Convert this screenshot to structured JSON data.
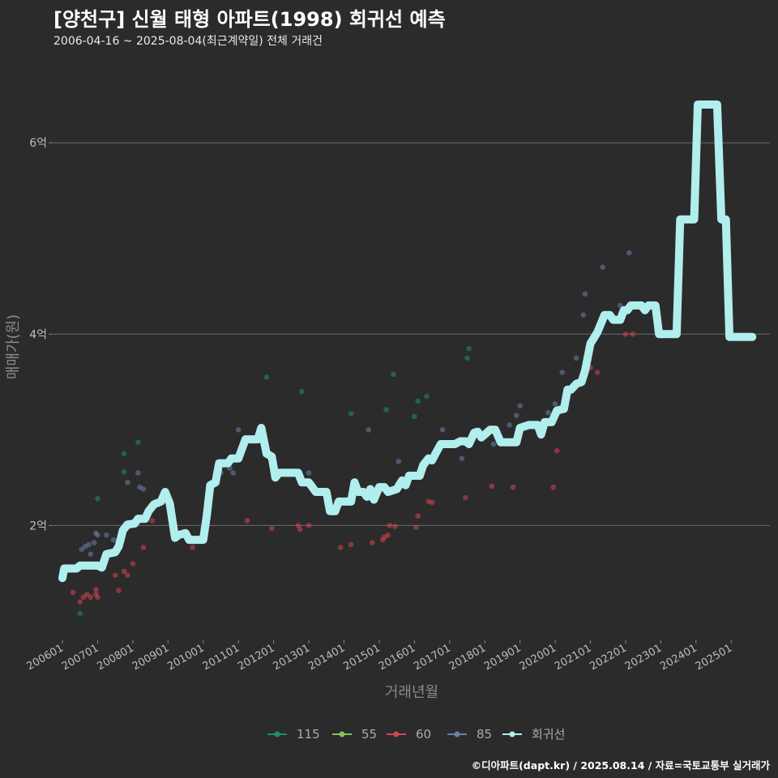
{
  "header": {
    "title": "[양천구] 신월 태형 아파트(1998) 회귀선 예측",
    "subtitle": "2006-04-16 ~ 2025-08-04(최근계약일) 전체 거래건"
  },
  "footer": {
    "caption": "©디아파트(dapt.kr) / 2025.08.14 / 자료=국토교통부 실거래가"
  },
  "chart_data": {
    "type": "scatter",
    "xlabel": "거래년월",
    "ylabel": "매매가(원)",
    "xlim": [
      2005.7,
      2026.1
    ],
    "ylim": [
      0.8,
      6.9
    ],
    "y_ticks": [
      2,
      4,
      6
    ],
    "y_tick_labels": [
      "2억",
      "4억",
      "6억"
    ],
    "x_ticks": [
      2006,
      2007,
      2008,
      2009,
      2010,
      2011,
      2012,
      2013,
      2014,
      2015,
      2016,
      2017,
      2018,
      2019,
      2020,
      2021,
      2022,
      2023,
      2024,
      2025
    ],
    "x_tick_labels": [
      "200601",
      "200701",
      "200801",
      "200901",
      "201001",
      "201101",
      "201201",
      "201301",
      "201401",
      "201501",
      "201601",
      "201701",
      "201801",
      "201901",
      "202001",
      "202101",
      "202201",
      "202301",
      "202401",
      "202501"
    ],
    "legend": [
      {
        "name": "115",
        "color": "#1c8f6c"
      },
      {
        "name": "55",
        "color": "#7fc65b"
      },
      {
        "name": "60",
        "color": "#d9434f"
      },
      {
        "name": "85",
        "color": "#6b7fa8"
      },
      {
        "name": "회귀선",
        "color": "#b1eeee"
      }
    ],
    "series": [
      {
        "name": "115",
        "color": "#1c8f6c",
        "points": [
          [
            2006.5,
            1.08
          ],
          [
            2007.0,
            2.28
          ],
          [
            2007.75,
            2.56
          ],
          [
            2007.75,
            2.75
          ],
          [
            2008.15,
            2.87
          ],
          [
            2011.8,
            3.55
          ],
          [
            2012.8,
            3.4
          ],
          [
            2015.2,
            3.21
          ],
          [
            2015.4,
            3.58
          ],
          [
            2016.1,
            3.3
          ],
          [
            2016.35,
            3.35
          ],
          [
            2017.5,
            3.75
          ],
          [
            2017.55,
            3.85
          ],
          [
            2014.2,
            3.17
          ],
          [
            2016.0,
            3.14
          ]
        ]
      },
      {
        "name": "55",
        "color": "#7fc65b",
        "points": []
      },
      {
        "name": "60",
        "color": "#d9434f",
        "points": [
          [
            2006.3,
            1.3
          ],
          [
            2006.5,
            1.2
          ],
          [
            2006.6,
            1.25
          ],
          [
            2006.7,
            1.28
          ],
          [
            2006.8,
            1.25
          ],
          [
            2006.95,
            1.28
          ],
          [
            2006.95,
            1.33
          ],
          [
            2007.0,
            1.25
          ],
          [
            2007.5,
            1.48
          ],
          [
            2007.6,
            1.32
          ],
          [
            2007.75,
            1.52
          ],
          [
            2007.85,
            1.48
          ],
          [
            2008.0,
            1.6
          ],
          [
            2008.3,
            1.77
          ],
          [
            2008.55,
            2.05
          ],
          [
            2009.7,
            1.77
          ],
          [
            2010.05,
            1.95
          ],
          [
            2011.25,
            2.05
          ],
          [
            2011.95,
            1.97
          ],
          [
            2012.7,
            2.0
          ],
          [
            2012.75,
            1.96
          ],
          [
            2013.0,
            2.0
          ],
          [
            2013.9,
            1.77
          ],
          [
            2014.2,
            1.8
          ],
          [
            2014.8,
            1.82
          ],
          [
            2015.1,
            1.85
          ],
          [
            2015.15,
            1.88
          ],
          [
            2015.25,
            1.9
          ],
          [
            2015.3,
            2.0
          ],
          [
            2015.45,
            1.99
          ],
          [
            2016.05,
            1.98
          ],
          [
            2016.1,
            2.1
          ],
          [
            2016.4,
            2.25
          ],
          [
            2016.5,
            2.24
          ],
          [
            2017.45,
            2.29
          ],
          [
            2018.2,
            2.41
          ],
          [
            2018.8,
            2.4
          ],
          [
            2019.95,
            2.4
          ],
          [
            2020.05,
            2.78
          ],
          [
            2021.0,
            3.65
          ],
          [
            2021.2,
            3.6
          ],
          [
            2022.0,
            4.0
          ],
          [
            2022.2,
            4.0
          ]
        ]
      },
      {
        "name": "85",
        "color": "#6b7fa8",
        "points": [
          [
            2006.55,
            1.75
          ],
          [
            2006.65,
            1.78
          ],
          [
            2006.75,
            1.8
          ],
          [
            2006.8,
            1.7
          ],
          [
            2006.9,
            1.82
          ],
          [
            2006.95,
            1.92
          ],
          [
            2007.0,
            1.9
          ],
          [
            2007.25,
            1.9
          ],
          [
            2007.45,
            1.85
          ],
          [
            2007.55,
            1.75
          ],
          [
            2007.7,
            1.85
          ],
          [
            2007.8,
            2.02
          ],
          [
            2007.85,
            2.45
          ],
          [
            2008.15,
            2.55
          ],
          [
            2008.2,
            2.4
          ],
          [
            2008.3,
            2.38
          ],
          [
            2010.5,
            2.55
          ],
          [
            2010.75,
            2.6
          ],
          [
            2010.85,
            2.55
          ],
          [
            2011.0,
            3.0
          ],
          [
            2013.0,
            2.55
          ],
          [
            2013.55,
            2.2
          ],
          [
            2014.25,
            2.3
          ],
          [
            2014.7,
            3.0
          ],
          [
            2015.55,
            2.67
          ],
          [
            2016.8,
            3.0
          ],
          [
            2017.35,
            2.7
          ],
          [
            2018.25,
            2.85
          ],
          [
            2018.7,
            3.05
          ],
          [
            2018.9,
            3.15
          ],
          [
            2019.0,
            3.25
          ],
          [
            2019.6,
            3.05
          ],
          [
            2019.8,
            3.18
          ],
          [
            2020.0,
            3.27
          ],
          [
            2020.2,
            3.6
          ],
          [
            2020.25,
            3.2
          ],
          [
            2020.6,
            3.75
          ],
          [
            2020.8,
            4.2
          ],
          [
            2020.85,
            4.42
          ],
          [
            2021.35,
            4.7
          ],
          [
            2021.85,
            4.3
          ],
          [
            2022.1,
            4.85
          ]
        ]
      }
    ],
    "regression": [
      [
        2006.0,
        1.45
      ],
      [
        2006.05,
        1.55
      ],
      [
        2006.4,
        1.55
      ],
      [
        2006.5,
        1.58
      ],
      [
        2007.0,
        1.58
      ],
      [
        2007.12,
        1.56
      ],
      [
        2007.25,
        1.7
      ],
      [
        2007.5,
        1.72
      ],
      [
        2007.6,
        1.78
      ],
      [
        2007.72,
        1.95
      ],
      [
        2007.85,
        2.01
      ],
      [
        2008.05,
        2.02
      ],
      [
        2008.15,
        2.07
      ],
      [
        2008.35,
        2.07
      ],
      [
        2008.45,
        2.15
      ],
      [
        2008.6,
        2.22
      ],
      [
        2008.8,
        2.25
      ],
      [
        2008.92,
        2.35
      ],
      [
        2009.05,
        2.23
      ],
      [
        2009.2,
        1.87
      ],
      [
        2009.3,
        1.9
      ],
      [
        2009.5,
        1.92
      ],
      [
        2009.6,
        1.85
      ],
      [
        2010.0,
        1.85
      ],
      [
        2010.1,
        2.1
      ],
      [
        2010.2,
        2.42
      ],
      [
        2010.35,
        2.45
      ],
      [
        2010.45,
        2.65
      ],
      [
        2010.7,
        2.65
      ],
      [
        2010.8,
        2.7
      ],
      [
        2011.0,
        2.7
      ],
      [
        2011.2,
        2.9
      ],
      [
        2011.55,
        2.9
      ],
      [
        2011.65,
        3.02
      ],
      [
        2011.8,
        2.75
      ],
      [
        2011.95,
        2.72
      ],
      [
        2012.05,
        2.5
      ],
      [
        2012.15,
        2.55
      ],
      [
        2012.7,
        2.55
      ],
      [
        2012.8,
        2.45
      ],
      [
        2013.0,
        2.45
      ],
      [
        2013.2,
        2.35
      ],
      [
        2013.5,
        2.35
      ],
      [
        2013.6,
        2.15
      ],
      [
        2013.75,
        2.15
      ],
      [
        2013.85,
        2.25
      ],
      [
        2014.2,
        2.25
      ],
      [
        2014.3,
        2.45
      ],
      [
        2014.4,
        2.35
      ],
      [
        2014.55,
        2.35
      ],
      [
        2014.65,
        2.3
      ],
      [
        2014.75,
        2.38
      ],
      [
        2014.85,
        2.27
      ],
      [
        2015.0,
        2.4
      ],
      [
        2015.15,
        2.4
      ],
      [
        2015.25,
        2.35
      ],
      [
        2015.5,
        2.38
      ],
      [
        2015.65,
        2.47
      ],
      [
        2015.75,
        2.42
      ],
      [
        2015.85,
        2.52
      ],
      [
        2016.15,
        2.52
      ],
      [
        2016.25,
        2.63
      ],
      [
        2016.4,
        2.7
      ],
      [
        2016.5,
        2.68
      ],
      [
        2016.6,
        2.75
      ],
      [
        2016.75,
        2.85
      ],
      [
        2017.0,
        2.85
      ],
      [
        2017.15,
        2.85
      ],
      [
        2017.3,
        2.88
      ],
      [
        2017.45,
        2.88
      ],
      [
        2017.55,
        2.85
      ],
      [
        2017.7,
        2.97
      ],
      [
        2017.8,
        2.98
      ],
      [
        2017.9,
        2.92
      ],
      [
        2018.0,
        2.95
      ],
      [
        2018.15,
        3.0
      ],
      [
        2018.3,
        3.0
      ],
      [
        2018.45,
        2.87
      ],
      [
        2018.9,
        2.87
      ],
      [
        2019.0,
        3.02
      ],
      [
        2019.25,
        3.05
      ],
      [
        2019.5,
        3.05
      ],
      [
        2019.6,
        2.95
      ],
      [
        2019.7,
        3.08
      ],
      [
        2019.9,
        3.08
      ],
      [
        2020.05,
        3.2
      ],
      [
        2020.25,
        3.22
      ],
      [
        2020.35,
        3.42
      ],
      [
        2020.45,
        3.42
      ],
      [
        2020.6,
        3.48
      ],
      [
        2020.75,
        3.5
      ],
      [
        2020.85,
        3.62
      ],
      [
        2021.0,
        3.9
      ],
      [
        2021.2,
        4.02
      ],
      [
        2021.4,
        4.2
      ],
      [
        2021.55,
        4.2
      ],
      [
        2021.65,
        4.15
      ],
      [
        2021.85,
        4.15
      ],
      [
        2021.95,
        4.25
      ],
      [
        2022.05,
        4.25
      ],
      [
        2022.15,
        4.3
      ],
      [
        2022.45,
        4.3
      ],
      [
        2022.55,
        4.25
      ],
      [
        2022.65,
        4.3
      ],
      [
        2022.85,
        4.3
      ],
      [
        2022.95,
        4.0
      ],
      [
        2023.45,
        4.0
      ],
      [
        2023.55,
        5.2
      ],
      [
        2023.95,
        5.2
      ],
      [
        2024.05,
        6.4
      ],
      [
        2024.6,
        6.4
      ],
      [
        2024.72,
        5.2
      ],
      [
        2024.85,
        5.2
      ],
      [
        2024.95,
        3.97
      ],
      [
        2025.6,
        3.97
      ]
    ]
  }
}
